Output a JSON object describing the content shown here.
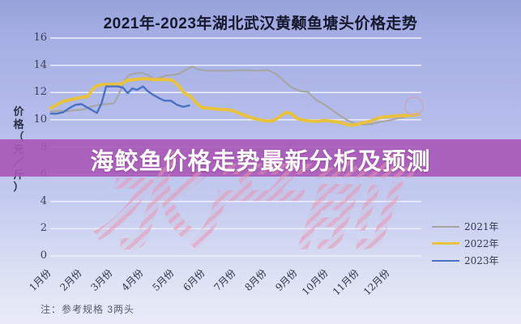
{
  "title": "2021年-2023年湖北武汉黄颡鱼塘头价格走势",
  "overlay_banner": {
    "text": "海鲛鱼价格走势最新分析及预测"
  },
  "watermark": {
    "text": "水产前沿"
  },
  "note": "注：参考规格  3两头",
  "chart_data": {
    "type": "line",
    "title": "2021年-2023年湖北武汉黄颡鱼塘头价格走势",
    "xlabel": "",
    "ylabel": "价格（元/斤）",
    "ylabel_vertical_chars": "价\n格\n（\n元\n／\n斤\n）",
    "ylim": [
      0,
      16
    ],
    "yticks": [
      16,
      14,
      12,
      10,
      8,
      6,
      4,
      2,
      0
    ],
    "x_unit": "月份 (fractional month, weekly data Jan–Dec)",
    "xtick_labels": [
      "1月份",
      "2月份",
      "3月份",
      "4月份",
      "5月份",
      "6月份",
      "7月份",
      "8月份",
      "9月份",
      "10月份",
      "11月份",
      "12月份"
    ],
    "grid": true,
    "gridline_color": "#edf0fa",
    "legend_position": "bottom-right",
    "annotation_circle": {
      "month": 13.0,
      "value": 11.0,
      "radius": 11,
      "color": "rgba(205,165,185,0.85)"
    },
    "series": [
      {
        "name": "2021年",
        "color": "#a6a6a6",
        "width": 2.2,
        "points": [
          [
            1.2,
            10.6
          ],
          [
            1.45,
            10.65
          ],
          [
            1.7,
            10.6
          ],
          [
            1.95,
            10.7
          ],
          [
            2.25,
            10.75
          ],
          [
            2.5,
            10.95
          ],
          [
            2.75,
            11.1
          ],
          [
            3.0,
            11.15
          ],
          [
            3.25,
            11.2
          ],
          [
            3.4,
            11.8
          ],
          [
            3.6,
            12.9
          ],
          [
            3.75,
            13.3
          ],
          [
            3.95,
            13.4
          ],
          [
            4.15,
            13.45
          ],
          [
            4.35,
            13.3
          ],
          [
            4.55,
            13.0
          ],
          [
            4.75,
            13.1
          ],
          [
            4.95,
            13.25
          ],
          [
            5.2,
            13.3
          ],
          [
            5.4,
            13.4
          ],
          [
            5.6,
            13.7
          ],
          [
            5.8,
            13.9
          ],
          [
            6.0,
            13.7
          ],
          [
            6.25,
            13.6
          ],
          [
            6.65,
            13.6
          ],
          [
            7.05,
            13.6
          ],
          [
            7.45,
            13.65
          ],
          [
            7.85,
            13.6
          ],
          [
            8.25,
            13.65
          ],
          [
            8.5,
            13.4
          ],
          [
            8.75,
            12.9
          ],
          [
            9.0,
            12.4
          ],
          [
            9.3,
            12.1
          ],
          [
            9.55,
            12.05
          ],
          [
            9.8,
            11.5
          ],
          [
            10.1,
            11.1
          ],
          [
            10.35,
            10.7
          ],
          [
            10.6,
            10.3
          ],
          [
            10.85,
            9.95
          ],
          [
            11.1,
            9.7
          ],
          [
            11.4,
            9.65
          ],
          [
            11.65,
            9.7
          ],
          [
            11.9,
            9.85
          ],
          [
            12.2,
            9.95
          ],
          [
            12.45,
            10.1
          ],
          [
            12.7,
            10.2
          ],
          [
            12.95,
            10.3
          ],
          [
            13.15,
            10.35
          ]
        ]
      },
      {
        "name": "2022年",
        "color": "#e9c23d",
        "width": 4,
        "points": [
          [
            1.2,
            10.85
          ],
          [
            1.4,
            11.1
          ],
          [
            1.6,
            11.35
          ],
          [
            1.8,
            11.45
          ],
          [
            2.0,
            11.55
          ],
          [
            2.2,
            11.65
          ],
          [
            2.4,
            11.7
          ],
          [
            2.55,
            12.2
          ],
          [
            2.7,
            12.5
          ],
          [
            2.9,
            12.6
          ],
          [
            3.1,
            12.6
          ],
          [
            3.3,
            12.6
          ],
          [
            3.5,
            12.65
          ],
          [
            3.7,
            12.9
          ],
          [
            3.9,
            12.95
          ],
          [
            4.1,
            13.0
          ],
          [
            4.3,
            13.0
          ],
          [
            4.55,
            12.95
          ],
          [
            4.75,
            12.95
          ],
          [
            4.95,
            12.95
          ],
          [
            5.15,
            12.9
          ],
          [
            5.35,
            12.5
          ],
          [
            5.55,
            11.95
          ],
          [
            5.75,
            11.7
          ],
          [
            5.9,
            11.3
          ],
          [
            6.1,
            10.9
          ],
          [
            6.3,
            10.85
          ],
          [
            6.55,
            10.8
          ],
          [
            6.75,
            10.75
          ],
          [
            6.95,
            10.75
          ],
          [
            7.2,
            10.6
          ],
          [
            7.4,
            10.4
          ],
          [
            7.6,
            10.25
          ],
          [
            7.8,
            10.1
          ],
          [
            8.0,
            10.0
          ],
          [
            8.2,
            9.9
          ],
          [
            8.45,
            9.95
          ],
          [
            8.65,
            10.25
          ],
          [
            8.85,
            10.55
          ],
          [
            9.0,
            10.45
          ],
          [
            9.2,
            10.1
          ],
          [
            9.45,
            9.95
          ],
          [
            9.65,
            9.9
          ],
          [
            9.9,
            9.9
          ],
          [
            10.1,
            9.95
          ],
          [
            10.3,
            9.9
          ],
          [
            10.5,
            9.85
          ],
          [
            10.7,
            9.75
          ],
          [
            10.9,
            9.6
          ],
          [
            11.15,
            9.65
          ],
          [
            11.35,
            9.8
          ],
          [
            11.6,
            9.9
          ],
          [
            11.8,
            10.1
          ],
          [
            12.0,
            10.2
          ],
          [
            12.25,
            10.25
          ],
          [
            12.5,
            10.3
          ],
          [
            12.75,
            10.3
          ],
          [
            13.0,
            10.35
          ],
          [
            13.15,
            10.4
          ]
        ]
      },
      {
        "name": "2023年",
        "color": "#4a72c2",
        "width": 2.4,
        "points": [
          [
            1.2,
            10.45
          ],
          [
            1.4,
            10.45
          ],
          [
            1.6,
            10.55
          ],
          [
            1.8,
            10.85
          ],
          [
            2.0,
            11.1
          ],
          [
            2.2,
            11.15
          ],
          [
            2.35,
            10.95
          ],
          [
            2.55,
            10.7
          ],
          [
            2.7,
            10.5
          ],
          [
            2.85,
            11.2
          ],
          [
            3.0,
            12.45
          ],
          [
            3.2,
            12.45
          ],
          [
            3.4,
            12.45
          ],
          [
            3.55,
            12.35
          ],
          [
            3.7,
            11.95
          ],
          [
            3.85,
            12.3
          ],
          [
            4.0,
            12.2
          ],
          [
            4.2,
            12.45
          ],
          [
            4.35,
            12.1
          ],
          [
            4.55,
            11.8
          ],
          [
            4.75,
            11.55
          ],
          [
            4.9,
            11.4
          ],
          [
            5.1,
            11.4
          ],
          [
            5.3,
            11.1
          ],
          [
            5.5,
            10.95
          ],
          [
            5.7,
            11.05
          ]
        ]
      }
    ]
  }
}
